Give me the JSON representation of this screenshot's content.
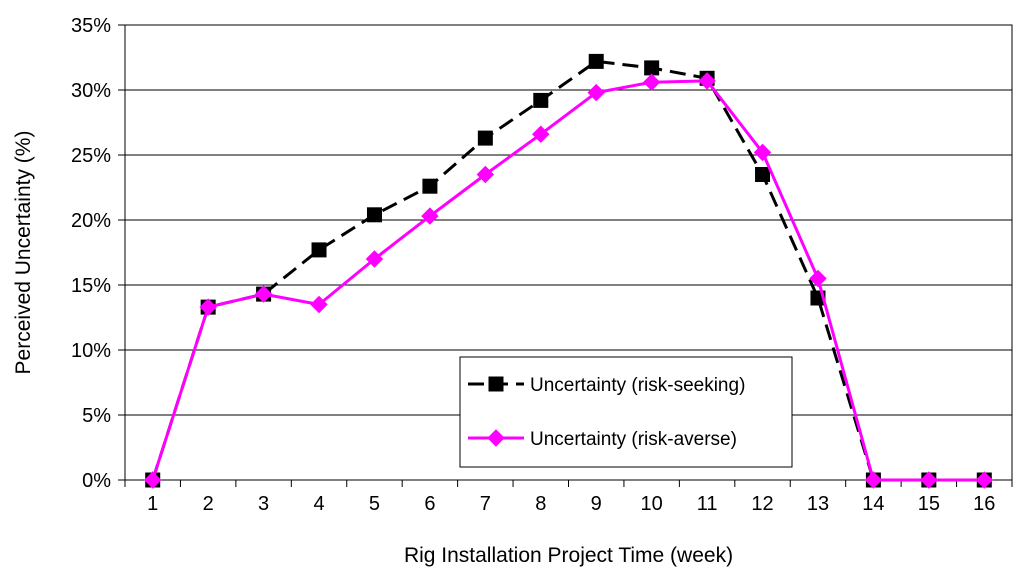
{
  "chart_data": {
    "type": "line",
    "title": "",
    "xlabel": "Rig Installation Project Time (week)",
    "ylabel": "Perceived Uncertainty (%)",
    "x": [
      1,
      2,
      3,
      4,
      5,
      6,
      7,
      8,
      9,
      10,
      11,
      12,
      13,
      14,
      15,
      16
    ],
    "ylim": [
      0,
      35
    ],
    "yticks": [
      0,
      5,
      10,
      15,
      20,
      25,
      30,
      35
    ],
    "ytick_labels": [
      "0%",
      "5%",
      "10%",
      "15%",
      "20%",
      "25%",
      "30%",
      "35%"
    ],
    "grid": "horizontal",
    "legend_position": "lower-right inside plot",
    "series": [
      {
        "name": "Uncertainty (risk-seeking)",
        "color": "#000000",
        "line_style": "dashed",
        "marker": "square",
        "values": [
          0,
          13.3,
          14.3,
          17.7,
          20.4,
          22.6,
          26.3,
          29.2,
          32.2,
          31.7,
          30.9,
          23.5,
          14.0,
          0,
          0,
          0
        ]
      },
      {
        "name": "Uncertainty (risk-averse)",
        "color": "#FF00FF",
        "line_style": "solid",
        "marker": "diamond",
        "values": [
          0,
          13.3,
          14.3,
          13.5,
          17.0,
          20.3,
          23.5,
          26.6,
          29.8,
          30.6,
          30.7,
          25.2,
          15.5,
          0,
          0,
          0
        ]
      }
    ]
  }
}
